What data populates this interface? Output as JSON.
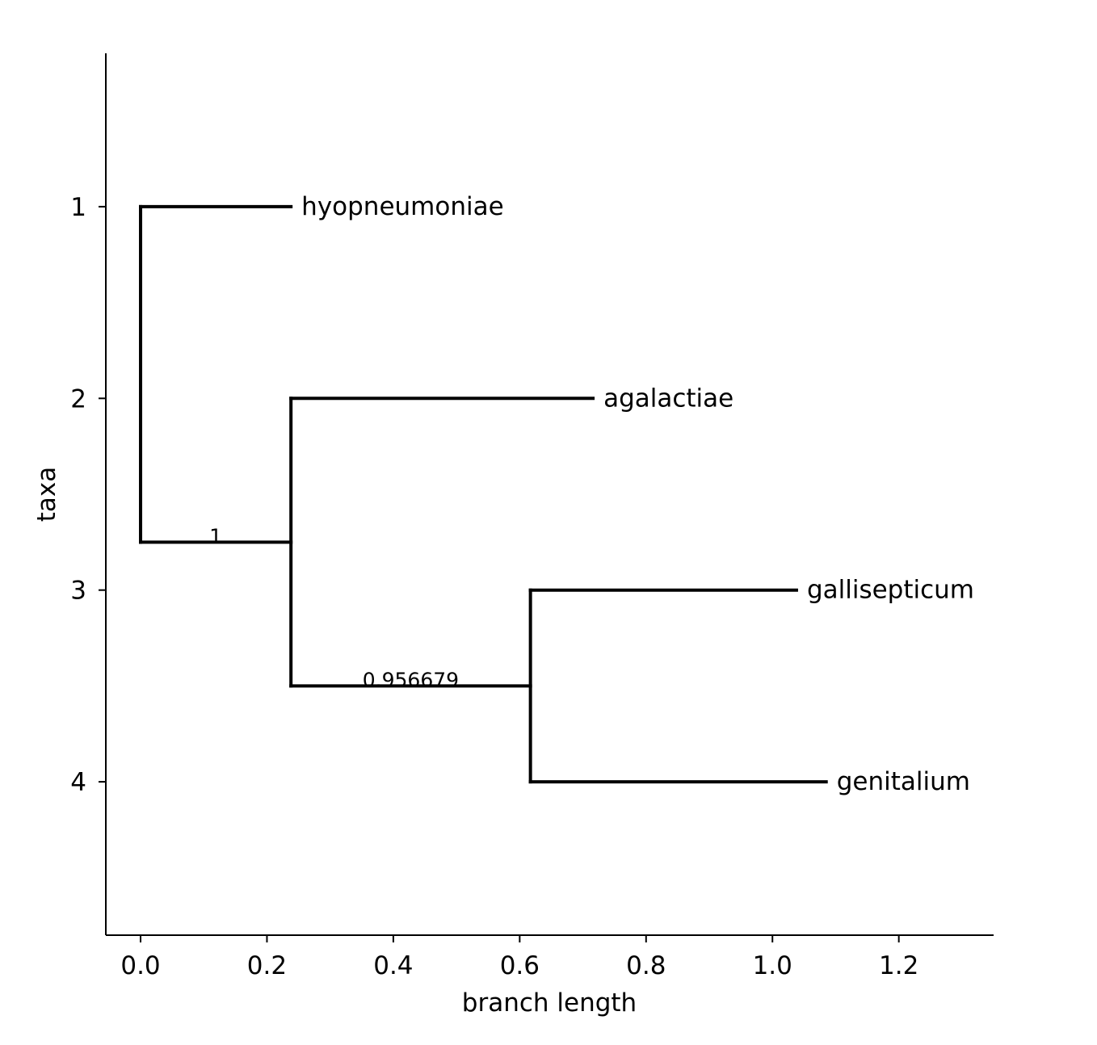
{
  "chart_data": {
    "type": "dendrogram",
    "xlabel": "branch length",
    "ylabel": "taxa",
    "xlim": [
      -0.055,
      1.35
    ],
    "ylim": [
      4.8,
      0.2
    ],
    "x_ticks": [
      0.0,
      0.2,
      0.4,
      0.6,
      0.8,
      1.0,
      1.2
    ],
    "x_tick_labels": [
      "0.0",
      "0.2",
      "0.4",
      "0.6",
      "0.8",
      "1.0",
      "1.2"
    ],
    "y_ticks": [
      1,
      2,
      3,
      4
    ],
    "y_tick_labels": [
      "1",
      "2",
      "3",
      "4"
    ],
    "grid": false,
    "line_color": "#000000",
    "leaves": [
      {
        "name": "hyopneumoniae",
        "x": 0.238,
        "y": 1
      },
      {
        "name": "agalactiae",
        "x": 0.716,
        "y": 2
      },
      {
        "name": "gallisepticum",
        "x": 1.038,
        "y": 3
      },
      {
        "name": "genitalium",
        "x": 1.085,
        "y": 4
      }
    ],
    "internal_nodes": [
      {
        "id": "root",
        "x": 0.0,
        "y": 2.75,
        "children_y": [
          1,
          2.75
        ]
      },
      {
        "id": "n1",
        "x": 0.238,
        "y": 2.75,
        "children_y": [
          2,
          3.5
        ],
        "support": "1"
      },
      {
        "id": "n2",
        "x": 0.617,
        "y": 3.5,
        "children_y": [
          3,
          4
        ],
        "support": "0.956679"
      }
    ],
    "branches": [
      {
        "from_x": 0.0,
        "to_x": 0.238,
        "y": 1
      },
      {
        "from_x": 0.0,
        "to_x": 0.238,
        "y": 2.75
      },
      {
        "from_x": 0.238,
        "to_x": 0.716,
        "y": 2
      },
      {
        "from_x": 0.238,
        "to_x": 0.617,
        "y": 3.5
      },
      {
        "from_x": 0.617,
        "to_x": 1.038,
        "y": 3
      },
      {
        "from_x": 0.617,
        "to_x": 1.085,
        "y": 4
      }
    ]
  }
}
